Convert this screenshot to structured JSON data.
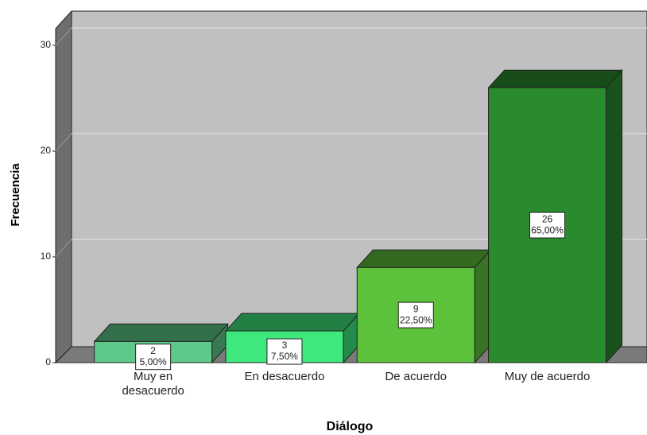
{
  "chart_data": {
    "type": "bar3d",
    "x_label": "Diálogo",
    "y_label": "Frecuencia",
    "categories": [
      "Muy en desacuerdo",
      "En desacuerdo",
      "De acuerdo",
      "Muy de acuerdo"
    ],
    "values": [
      2,
      3,
      9,
      26
    ],
    "percentages": {
      "values": [
        5,
        7.5,
        22.5,
        65
      ],
      "value_labels": [
        "5,00%",
        "7,50%",
        "22,50%",
        "65,00%"
      ]
    },
    "colors": [
      "#5ec98a",
      "#3ee87c",
      "#5cc13b",
      "#2a8a2e"
    ],
    "ylim": [
      0,
      30
    ],
    "yticks": [
      0,
      10,
      20,
      30
    ],
    "grid": true
  }
}
